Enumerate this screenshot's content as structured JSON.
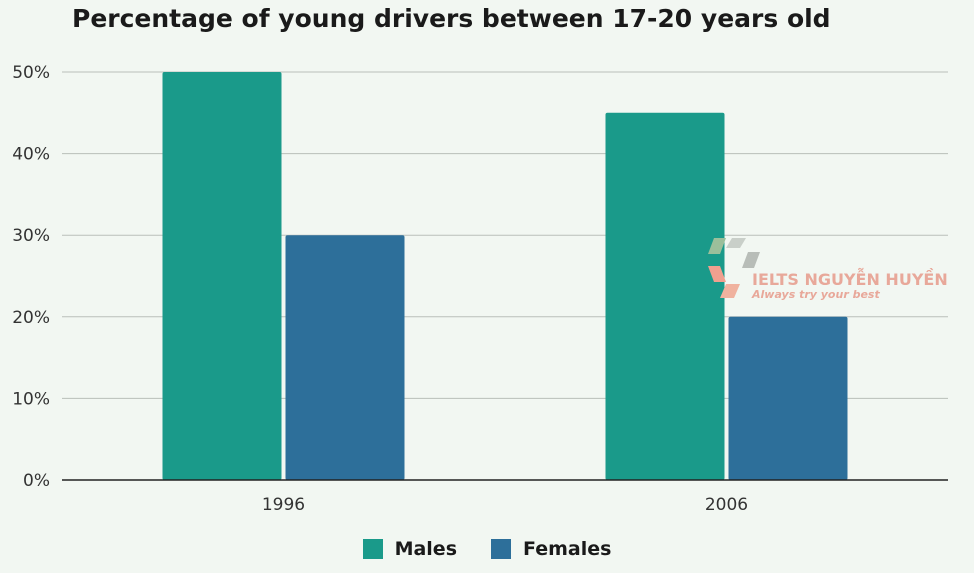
{
  "chart_data": {
    "type": "bar",
    "title": "Percentage of young drivers between 17-20 years old",
    "categories": [
      "1996",
      "2006"
    ],
    "series": [
      {
        "name": "Males",
        "values": [
          50,
          45
        ],
        "color": "#1a9a8a"
      },
      {
        "name": "Females",
        "values": [
          30,
          20
        ],
        "color": "#2d6f9a"
      }
    ],
    "ylim": [
      0,
      50
    ],
    "yticks": [
      0,
      10,
      20,
      30,
      40,
      50
    ],
    "ytick_labels": [
      "0%",
      "10%",
      "20%",
      "30%",
      "40%",
      "50%"
    ],
    "grid": true,
    "legend_position": "bottom"
  },
  "watermark": {
    "brand": "IELTS NGUYỄN HUYỀN",
    "tagline": "Always try your best"
  }
}
